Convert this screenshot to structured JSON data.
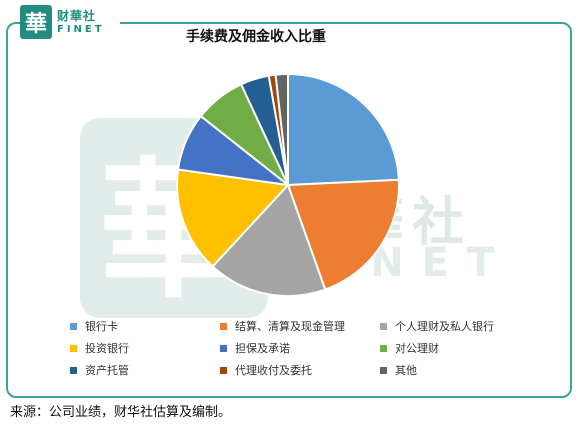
{
  "brand": {
    "seal_char": "華",
    "name_cn": "财華社",
    "name_en": "FINET"
  },
  "watermark": {
    "seal_char": "華",
    "name_cn": "财華社",
    "name_en": "FINET"
  },
  "source": "来源：公司业绩，财华社估算及编制。",
  "colors": {
    "frame": "#3aa39a",
    "brand": "#1f8d80"
  },
  "chart_data": {
    "type": "pie",
    "title": "手续费及佣金收入比重",
    "start_angle_deg": 0,
    "direction": "clockwise",
    "legend_position": "bottom",
    "categories": [
      "银行卡",
      "结算、清算及现金管理",
      "个人理财及私人银行",
      "投资银行",
      "担保及承诺",
      "对公理财",
      "资产托管",
      "代理收付及委托",
      "其他"
    ],
    "values": [
      24.5,
      20.5,
      17.5,
      15.5,
      8.5,
      7.5,
      4.2,
      1.0,
      1.8
    ],
    "colors": [
      "#5b9bd5",
      "#ed7d31",
      "#a5a5a5",
      "#ffc000",
      "#4472c4",
      "#70ad47",
      "#255e91",
      "#9e480e",
      "#636363"
    ]
  }
}
